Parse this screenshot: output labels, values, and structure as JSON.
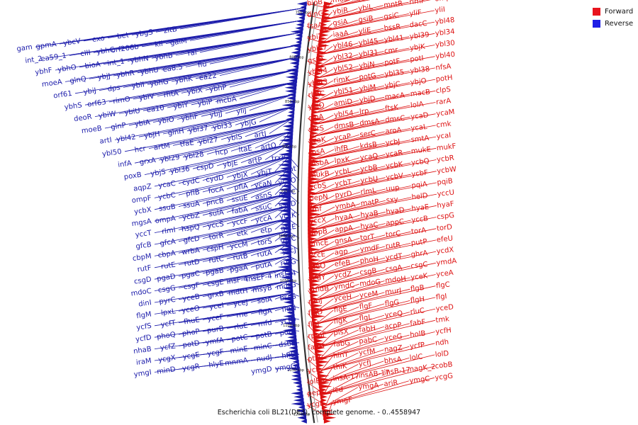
{
  "caption": "Escherichia coli BL21(DE3), complete genome. - 0..4558947",
  "legend": [
    {
      "label": "Forward",
      "color": "#e8141e"
    },
    {
      "label": "Reverse",
      "color": "#1e1ee6"
    }
  ],
  "colors": {
    "forward": "#dd1111",
    "reverse": "#1a1aaa",
    "backbone": "#555555"
  },
  "kbp_marks": [
    "750 kbp",
    "800 kbp",
    "850 kbp",
    "900 kbp",
    "950 kbp",
    "1000 kbp",
    "1050 kbp",
    "1100 kbp",
    "1150 kbp",
    "1200 kbp"
  ],
  "forward_labels": [
    "bioB",
    "moaA",
    "ybiC",
    "moaE",
    "ybiB",
    "rhlE",
    "dinG",
    "ybiR",
    "ybiL",
    "mntR",
    "rlmF",
    "ompX",
    "fsaA",
    "gsiA",
    "gsiB",
    "gsiC",
    "yliF",
    "yliI",
    "ybiT",
    "iaaA",
    "yliE",
    "bssR",
    "dacC",
    "ybl48",
    "ybl47",
    "ybl46",
    "ybl45",
    "ybl41",
    "ybl39",
    "ybl34",
    "gsiD",
    "ybl32",
    "ybl31",
    "cmr",
    "ybjK",
    "ybl30",
    "ybl44",
    "ybl52",
    "ybjN",
    "potF",
    "potI",
    "ybl40",
    "ybl43",
    "rimK",
    "potG",
    "ybl35",
    "ybl38",
    "nfsA",
    "rlmC",
    "ybl51",
    "ybjM",
    "ybjC",
    "ybjO",
    "potH",
    "ybjQ",
    "amiD",
    "ybjD",
    "macA",
    "macB",
    "clpS",
    "clpA",
    "ybl54",
    "lrp",
    "ftsK",
    "lolA",
    "rarA",
    "serS",
    "dmsB",
    "dmsA",
    "dmsC",
    "ycaD",
    "ycaM",
    "ycaK",
    "ycaP",
    "serC",
    "aroA",
    "ycaL",
    "cmk",
    "rpsA",
    "ihfB",
    "kdsB",
    "ycbJ",
    "smtA",
    "ycaI",
    "msbA",
    "lpxK",
    "ycaQ",
    "ycaR",
    "mukE",
    "mukF",
    "mukB",
    "ycbL",
    "ycbB",
    "ycbK",
    "ycbQ",
    "ycbR",
    "ycbS",
    "ycbT",
    "ycbU",
    "ycbV",
    "ycbF",
    "ycbW",
    "pepN",
    "pyrD",
    "rlmL",
    "uup",
    "pqiA",
    "pqiB",
    "rmf",
    "ymbA",
    "matP",
    "sxy",
    "helD",
    "yccU",
    "yccX",
    "hyaA",
    "hyaB",
    "hyaD",
    "hyaE",
    "hyaF",
    "appB",
    "appA",
    "hyaC",
    "appC",
    "yccB",
    "cspG",
    "ymcE",
    "gnsA",
    "torT",
    "torC",
    "torA",
    "torD",
    "yccE",
    "agp",
    "ymdF",
    "rutR",
    "putP",
    "efeU",
    "efeO",
    "efeB",
    "phoH",
    "ycdT",
    "ghrA",
    "ycdX",
    "ycdY",
    "ycdZ",
    "csgB",
    "csgA",
    "csgC",
    "ymdA",
    "ymdB",
    "ymdC",
    "mdoG",
    "mdoH",
    "yceK",
    "yceA",
    "rimJ",
    "yceH",
    "yceM",
    "murJ",
    "flgB",
    "flgC",
    "flgD",
    "flgE",
    "flgF",
    "flgG",
    "flgH",
    "flgI",
    "flgJ",
    "flgK",
    "flgL",
    "yceQ",
    "rluC",
    "yceD",
    "rpmF",
    "plsX",
    "fabH",
    "acpP",
    "fabF",
    "tmk",
    "fabD",
    "fabG",
    "pabC",
    "yceG",
    "holB",
    "ycfH",
    "ptsG",
    "hinT",
    "ycfM",
    "nagZ",
    "ycfP",
    "ndh",
    "ycfL",
    "thiK",
    "ycfJ",
    "bhsA",
    "lolC",
    "lolD",
    "lolE",
    "insA-17",
    "insAB-17",
    "insB-17",
    "nagK_2",
    "cobB",
    "pepT",
    "icd",
    "ymgA",
    "ariR",
    "ymgC",
    "ycgG",
    "ycgI",
    "ymgF"
  ],
  "reverse_labels": [
    "zitB",
    "ybgS",
    "bet",
    "exo",
    "ybcV",
    "gpmA",
    "gam",
    "galM",
    "kil",
    "orf206b",
    "ybhC",
    "cIII",
    "ea59_1",
    "int_2",
    "ral",
    "ybhB",
    "ybhN",
    "int_1",
    "bioA",
    "ybhO",
    "ybhF",
    "fiu",
    "ea8.5",
    "ybhU",
    "ybhR",
    "ybjJ",
    "glnQ",
    "moeA",
    "ea22",
    "ybhK",
    "ybhG",
    "ybiI",
    "dps",
    "ybiJ",
    "orf61",
    "ybhP",
    "ybiX",
    "rhtA",
    "ybiV",
    "rimO",
    "orf63",
    "ybhS",
    "mcbA",
    "ybiP",
    "ybiY",
    "ea10",
    "ybiU",
    "ybiW",
    "deoR",
    "yliJ",
    "ybjJ",
    "ybhF",
    "ybiO",
    "ybiA",
    "glnP",
    "moeB",
    "ybjG",
    "ybl33",
    "ybl37",
    "glnH",
    "ybjH",
    "ybl42",
    "artI",
    "artJ",
    "ybiS",
    "ybl27",
    "tfaE",
    "artM",
    "hcr",
    "ybl50",
    "artQ",
    "ltaE",
    "hcp",
    "ybl28",
    "ybl29",
    "grxA",
    "infA",
    "trxB",
    "artP",
    "ybjE",
    "cspD",
    "ybl36",
    "ybjS",
    "poxB",
    "aat",
    "ybjT",
    "ybjX",
    "cydD",
    "cydC",
    "ycaC",
    "aqpZ",
    "ycaO",
    "ycaN",
    "pflA",
    "focA",
    "pflB",
    "ycbC",
    "ompF",
    "aspC",
    "asnS",
    "ssuE",
    "pncB",
    "ssuA",
    "ssuB",
    "ycbX",
    "ssuD",
    "ssuC",
    "fabA",
    "sulA",
    "ycbZ",
    "ompA",
    "mgsA",
    "yccK",
    "yccA",
    "yccF",
    "yccS",
    "hspQ",
    "rlmI",
    "yccT",
    "gfcE",
    "etp",
    "etk",
    "torR",
    "gfcD",
    "gfcA",
    "gfcB",
    "gfcC",
    "torS",
    "yccM",
    "cspH",
    "wrbA",
    "cbpA",
    "cbpM",
    "yccJ",
    "rutA",
    "rutB",
    "rutC",
    "rutD",
    "rutE",
    "rutF",
    "rutG",
    "putA",
    "pgaA",
    "pgaB",
    "pgaC",
    "pgaD",
    "csgD",
    "insE-4",
    "insEF-4",
    "insF-4",
    "csgE",
    "csgF",
    "csgG",
    "mdoC",
    "mdtG",
    "msyB",
    "mdtH",
    "grxB",
    "yceB",
    "pyrC",
    "dinI",
    "bssS",
    "solA",
    "yceJ",
    "yceI",
    "yceO",
    "lpxL",
    "flgM",
    "flgN",
    "flgA",
    "rne",
    "yceF",
    "fhuE",
    "ycfT",
    "ycfS",
    "ycfQ",
    "mfd",
    "rluE",
    "purB",
    "phoP",
    "phoQ",
    "ycfD",
    "potA",
    "potB",
    "potC",
    "ymfA",
    "potD",
    "ycfZ",
    "nhaB",
    "dsbB",
    "minC",
    "minE",
    "ycgF",
    "ycgE",
    "ycgX",
    "iraM",
    "hflD",
    "nudJ",
    "mnmA",
    "hlyE",
    "ycgR",
    "minD",
    "ymgI",
    "ymgG",
    "ymgD"
  ]
}
